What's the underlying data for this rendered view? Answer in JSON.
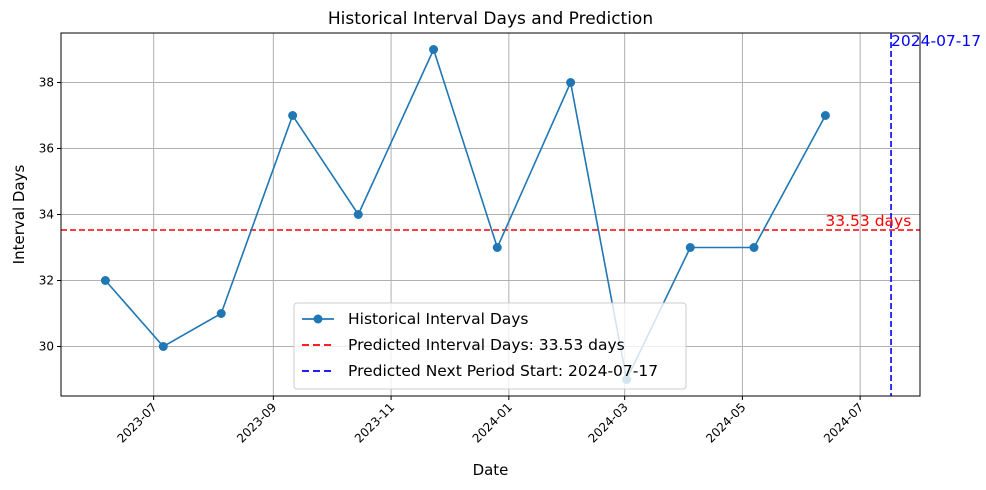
{
  "chart_data": {
    "type": "line",
    "title": "Historical Interval Days and Prediction",
    "xlabel": "Date",
    "ylabel": "Interval Days",
    "x_axis_type": "date",
    "xlim": [
      "2023-05-14",
      "2024-08-01"
    ],
    "ylim": [
      28.5,
      39.5
    ],
    "x_ticks": [
      "2023-07",
      "2023-09",
      "2023-11",
      "2024-01",
      "2024-03",
      "2024-05",
      "2024-07"
    ],
    "x_tick_dates": [
      "2023-07-01",
      "2023-09-01",
      "2023-11-01",
      "2024-01-01",
      "2024-03-01",
      "2024-05-01",
      "2024-07-01"
    ],
    "y_ticks": [
      30,
      32,
      34,
      36,
      38
    ],
    "grid": true,
    "legend_position": "lower-center",
    "series": [
      {
        "name": "Historical Interval Days",
        "color": "#1f77b4",
        "marker": "circle",
        "x": [
          "2023-06-06",
          "2023-07-06",
          "2023-08-05",
          "2023-09-11",
          "2023-10-15",
          "2023-11-23",
          "2023-12-26",
          "2024-02-02",
          "2024-03-02",
          "2024-04-04",
          "2024-05-07",
          "2024-06-13"
        ],
        "y": [
          32,
          30,
          31,
          37,
          34,
          39,
          33,
          38,
          29,
          33,
          33,
          37
        ]
      }
    ],
    "reference_lines": [
      {
        "name": "Predicted Interval Days: 33.53 days",
        "orientation": "horizontal",
        "value": 33.53,
        "color": "#ff0000",
        "style": "dashed",
        "label": "33.53 days"
      },
      {
        "name": "Predicted Next Period Start: 2024-07-17",
        "orientation": "vertical",
        "value": "2024-07-17",
        "color": "#0000ff",
        "style": "dashed",
        "label": "2024-07-17"
      }
    ]
  }
}
